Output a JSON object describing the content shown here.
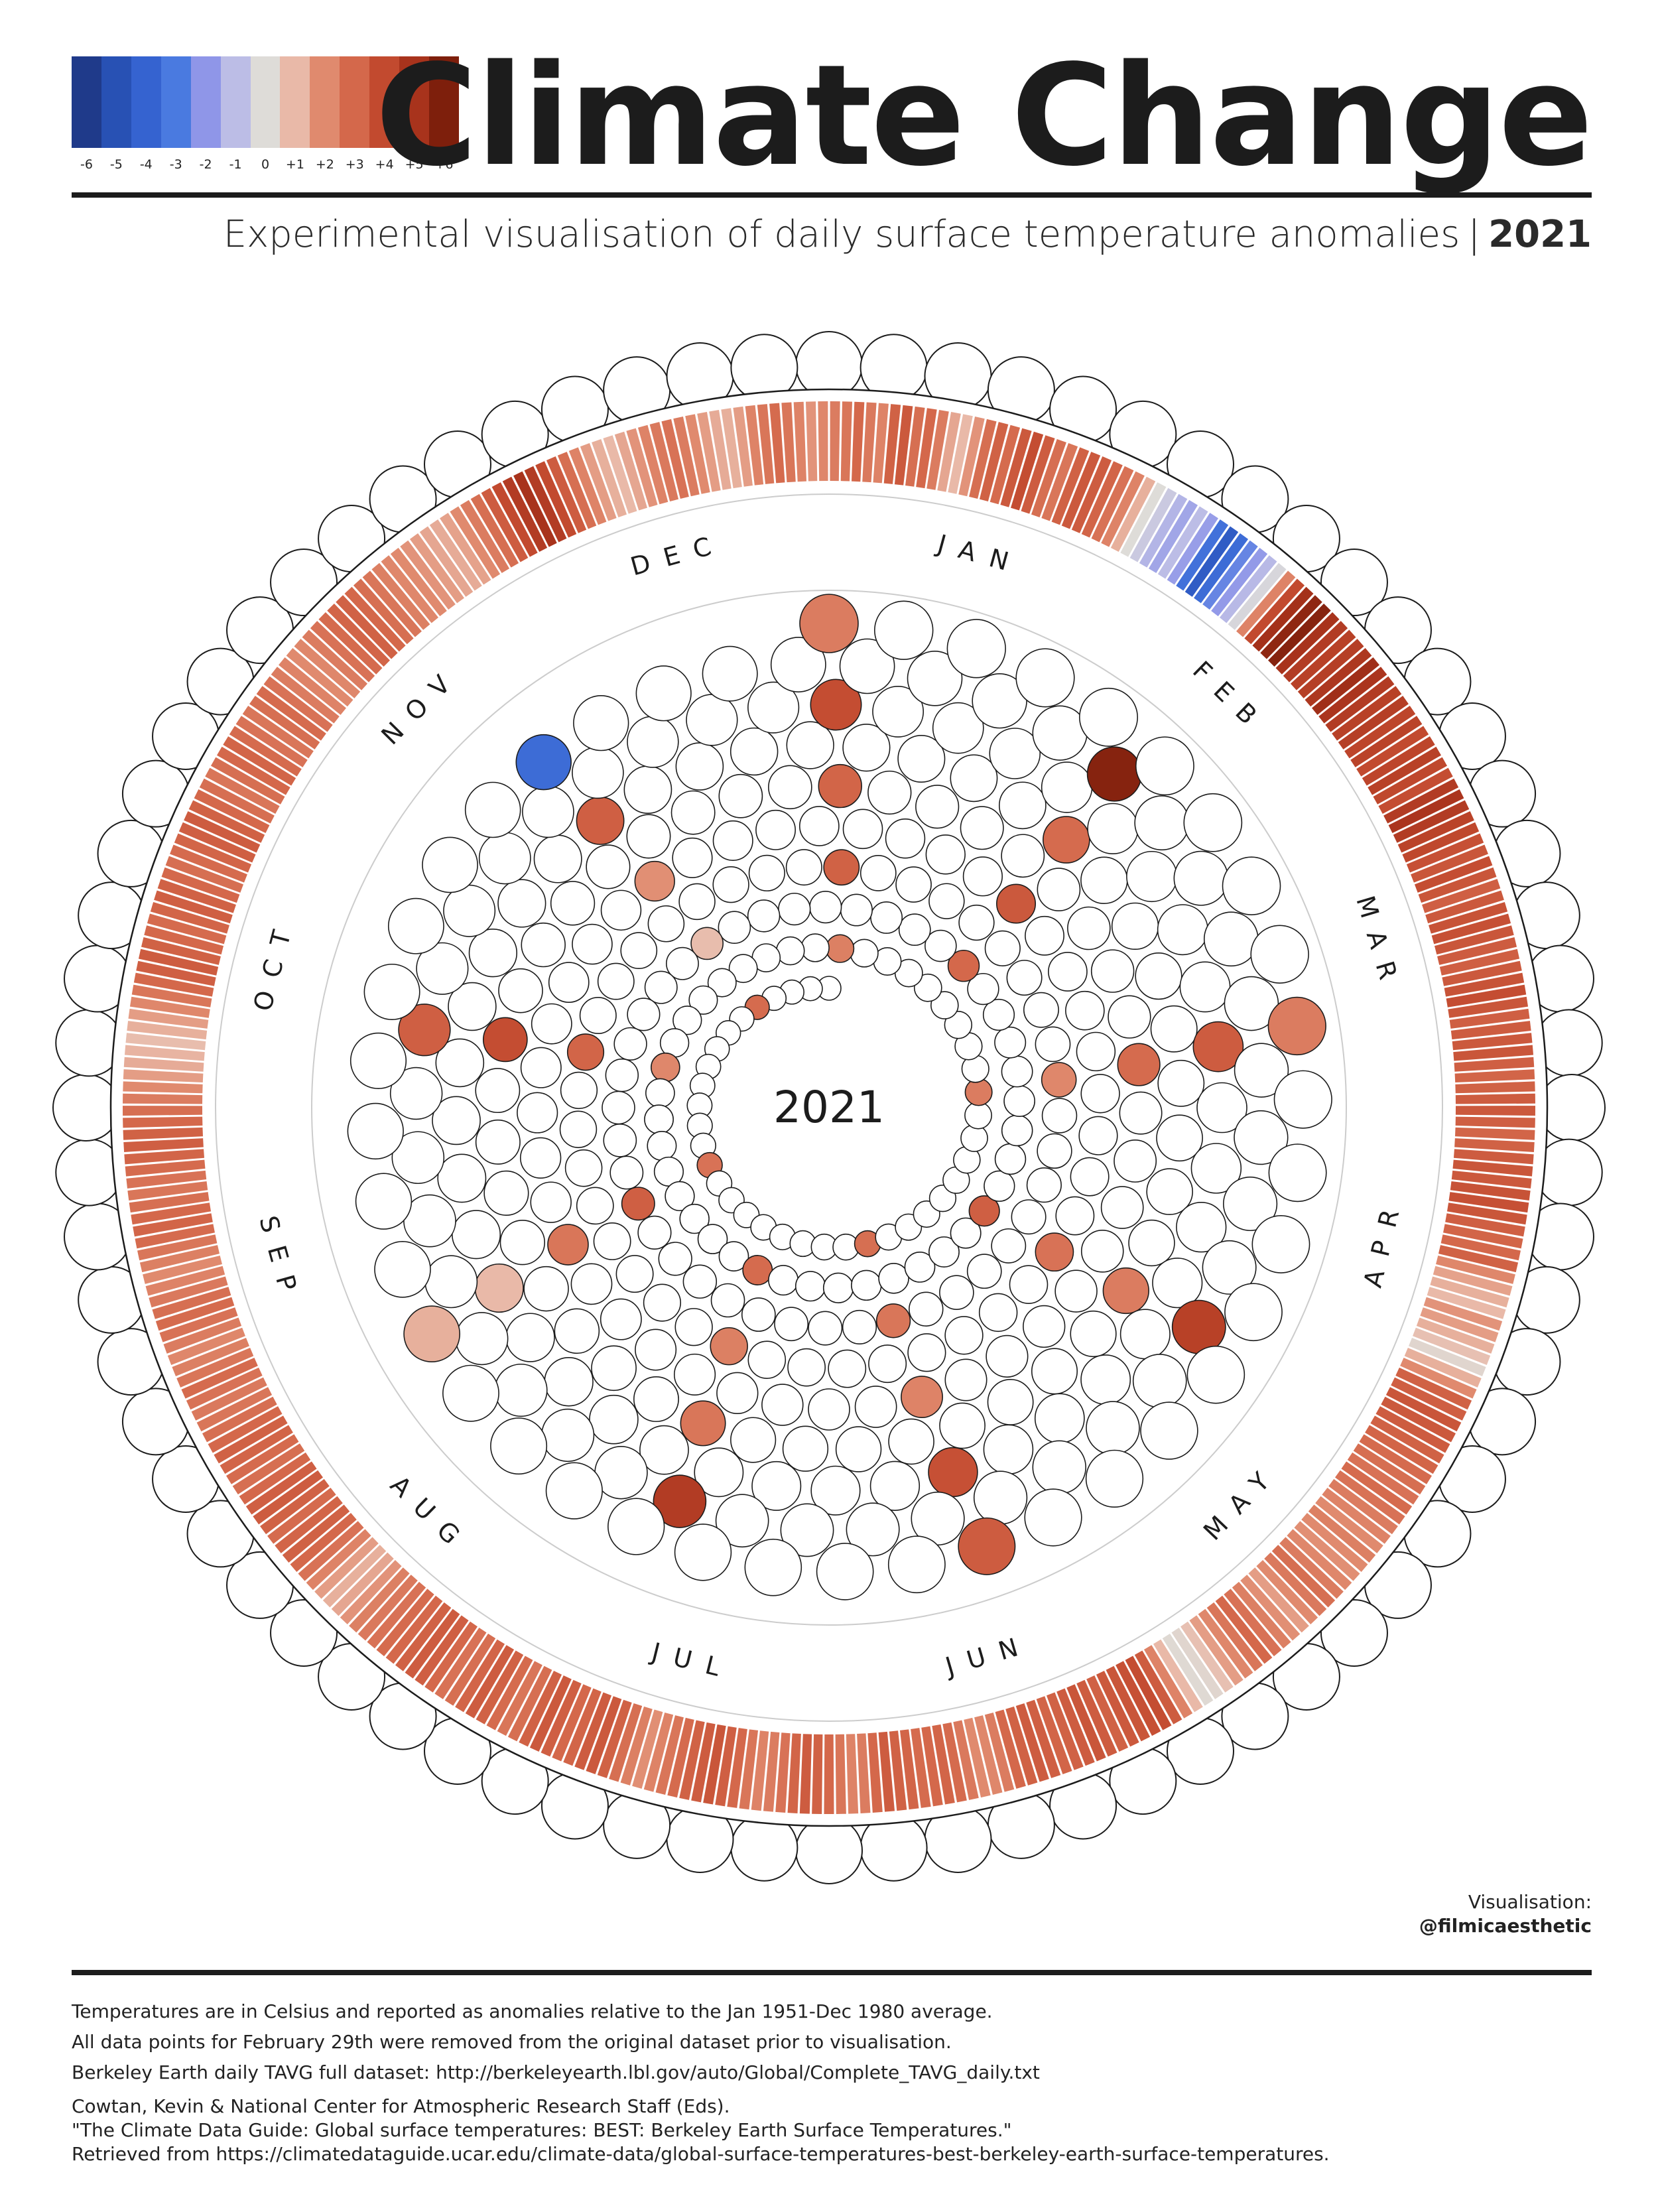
{
  "header": {
    "title": "Climate Change",
    "subtitle": "Experimental visualisation of daily surface temperature anomalies",
    "separator": "|",
    "year": "2021"
  },
  "legend": {
    "ticks": [
      "-6",
      "-5",
      "-4",
      "-3",
      "-2",
      "-1",
      "0",
      "+1",
      "+2",
      "+3",
      "+4",
      "+5",
      "+6"
    ],
    "colors": [
      "#1f3a8a",
      "#2851b4",
      "#3563d0",
      "#4a7ae0",
      "#8f96e8",
      "#bcbde6",
      "#dedcd8",
      "#e9b9a8",
      "#e08a6e",
      "#d4684b",
      "#c24a2f",
      "#a8331c",
      "#7e1f0c"
    ]
  },
  "chart_data": {
    "type": "radial",
    "year": "2021",
    "center_label": "2021",
    "months": [
      "JAN",
      "FEB",
      "MAR",
      "APR",
      "MAY",
      "JUN",
      "JUL",
      "AUG",
      "SEP",
      "OCT",
      "NOV",
      "DEC"
    ],
    "month_lengths": [
      31,
      28,
      31,
      30,
      31,
      30,
      31,
      31,
      30,
      31,
      30,
      31
    ],
    "unit": "°C anomaly",
    "color_scale": {
      "min": -6,
      "max": 6
    },
    "daily_anomaly": [
      [
        2.4,
        2.6,
        3.0,
        2.5,
        2.2,
        3.2,
        3.5,
        2.8,
        3.0,
        2.4,
        1.4,
        1.0,
        1.8,
        2.8,
        3.2,
        2.9,
        3.5,
        3.9,
        3.4,
        2.8,
        2.6,
        3.2,
        3.5,
        3.4,
        3.1,
        2.7,
        2.2,
        1.2,
        0.0,
        -0.6,
        -1.2
      ],
      [
        -1.6,
        -1.0,
        -1.8,
        -3.4,
        -4.4,
        -3.6,
        -2.6,
        -1.9,
        -1.1,
        -0.2,
        2.2,
        4.0,
        5.1,
        5.6,
        5.8,
        5.0,
        4.6,
        4.4,
        4.5,
        4.8,
        5.2,
        4.9,
        4.6,
        4.4,
        4.5,
        4.2,
        4.3,
        4.0
      ],
      [
        4.2,
        4.4,
        4.1,
        3.9,
        4.6,
        4.9,
        4.6,
        4.3,
        4.1,
        3.8,
        3.6,
        3.9,
        3.6,
        3.3,
        3.5,
        3.7,
        3.8,
        3.6,
        3.4,
        3.3,
        3.5,
        3.7,
        3.9,
        3.6,
        3.3,
        3.4,
        3.5,
        3.6,
        3.3,
        3.1,
        3.2
      ],
      [
        3.4,
        3.5,
        3.3,
        3.1,
        3.2,
        3.4,
        3.6,
        3.5,
        3.7,
        3.8,
        3.6,
        3.3,
        3.1,
        3.0,
        3.2,
        2.1,
        1.5,
        1.2,
        1.0,
        1.8,
        1.6,
        1.2,
        0.8,
        0.2,
        1.2,
        2.0,
        3.2,
        3.3,
        3.6,
        3.5
      ],
      [
        3.4,
        3.2,
        3.1,
        2.9,
        2.8,
        2.7,
        2.9,
        2.7,
        2.4,
        2.2,
        2.0,
        2.3,
        2.0,
        1.9,
        2.1,
        2.4,
        2.8,
        2.5,
        2.0,
        1.6,
        1.9,
        2.3,
        2.7,
        3.0,
        2.6,
        2.1,
        1.6,
        0.8,
        0.2,
        0.1,
        1.0
      ],
      [
        2.2,
        3.4,
        3.9,
        3.8,
        3.6,
        3.5,
        3.2,
        3.4,
        3.6,
        3.4,
        3.2,
        3.1,
        3.3,
        3.4,
        3.2,
        3.0,
        2.4,
        2.1,
        2.0,
        2.5,
        2.9,
        3.1,
        3.0,
        2.9,
        3.1,
        3.2,
        3.4,
        3.0,
        2.4,
        2.2
      ],
      [
        2.6,
        3.0,
        3.2,
        3.4,
        3.1,
        2.7,
        2.4,
        2.2,
        2.6,
        3.0,
        3.3,
        3.6,
        3.4,
        3.2,
        2.9,
        2.6,
        2.2,
        1.9,
        2.3,
        2.8,
        3.2,
        3.5,
        3.4,
        3.1,
        3.0,
        3.3,
        3.5,
        3.2,
        2.8,
        2.6,
        2.9
      ],
      [
        3.2,
        3.4,
        3.1,
        2.8,
        2.7,
        3.0,
        3.3,
        3.4,
        3.2,
        3.0,
        2.9,
        2.7,
        2.5,
        2.3,
        1.8,
        1.4,
        1.2,
        1.6,
        2.2,
        2.7,
        3.0,
        3.2,
        3.1,
        2.9,
        3.2,
        3.4,
        3.3,
        3.0,
        2.8,
        2.9,
        3.1
      ],
      [
        3.2,
        3.0,
        2.8,
        2.6,
        2.5,
        2.7,
        2.9,
        2.6,
        2.3,
        2.1,
        2.4,
        2.7,
        2.9,
        2.8,
        2.5,
        2.2,
        2.0,
        2.3,
        2.6,
        2.9,
        3.1,
        3.0,
        2.8,
        2.6,
        2.7,
        2.9,
        3.1,
        3.3,
        3.2,
        3.0
      ],
      [
        2.8,
        2.4,
        2.0,
        1.6,
        1.3,
        1.1,
        0.9,
        1.2,
        1.6,
        2.1,
        2.6,
        3.0,
        3.3,
        3.4,
        3.2,
        3.0,
        2.9,
        3.1,
        3.3,
        3.2,
        3.0,
        2.8,
        2.9,
        3.1,
        3.3,
        3.4,
        3.2,
        3.0,
        2.8,
        2.6,
        2.8
      ],
      [
        3.0,
        3.1,
        2.9,
        2.7,
        2.6,
        2.8,
        2.9,
        2.7,
        2.4,
        2.2,
        2.0,
        2.1,
        2.4,
        2.7,
        2.9,
        3.1,
        3.2,
        3.0,
        2.8,
        2.6,
        2.3,
        2.1,
        2.0,
        1.8,
        1.6,
        1.4,
        1.3,
        1.5,
        2.0,
        2.4
      ],
      [
        2.8,
        3.4,
        4.0,
        4.6,
        5.0,
        4.6,
        4.0,
        3.4,
        2.8,
        2.2,
        1.6,
        1.2,
        1.0,
        1.4,
        1.8,
        2.2,
        2.5,
        2.7,
        2.4,
        2.0,
        1.6,
        1.3,
        1.2,
        1.6,
        2.2,
        2.6,
        2.9,
        2.6,
        2.2,
        1.8,
        2.1
      ]
    ]
  },
  "credit": {
    "label": "Visualisation:",
    "handle": "@filmicaesthetic"
  },
  "notes": {
    "line1": "Temperatures are in Celsius and reported as anomalies relative to the Jan 1951-Dec 1980 average.",
    "line2": "All data points for February 29th were removed from the original dataset prior to visualisation.",
    "line3": "Berkeley Earth daily TAVG full dataset: http://berkeleyearth.lbl.gov/auto/Global/Complete_TAVG_daily.txt",
    "cite1": "Cowtan, Kevin & National Center for Atmospheric Research Staff (Eds).",
    "cite2": "\"The Climate Data Guide: Global surface temperatures: BEST: Berkeley Earth Surface Temperatures.\"",
    "cite3": "Retrieved from https://climatedataguide.ucar.edu/climate-data/global-surface-temperatures-best-berkeley-earth-surface-temperatures."
  }
}
